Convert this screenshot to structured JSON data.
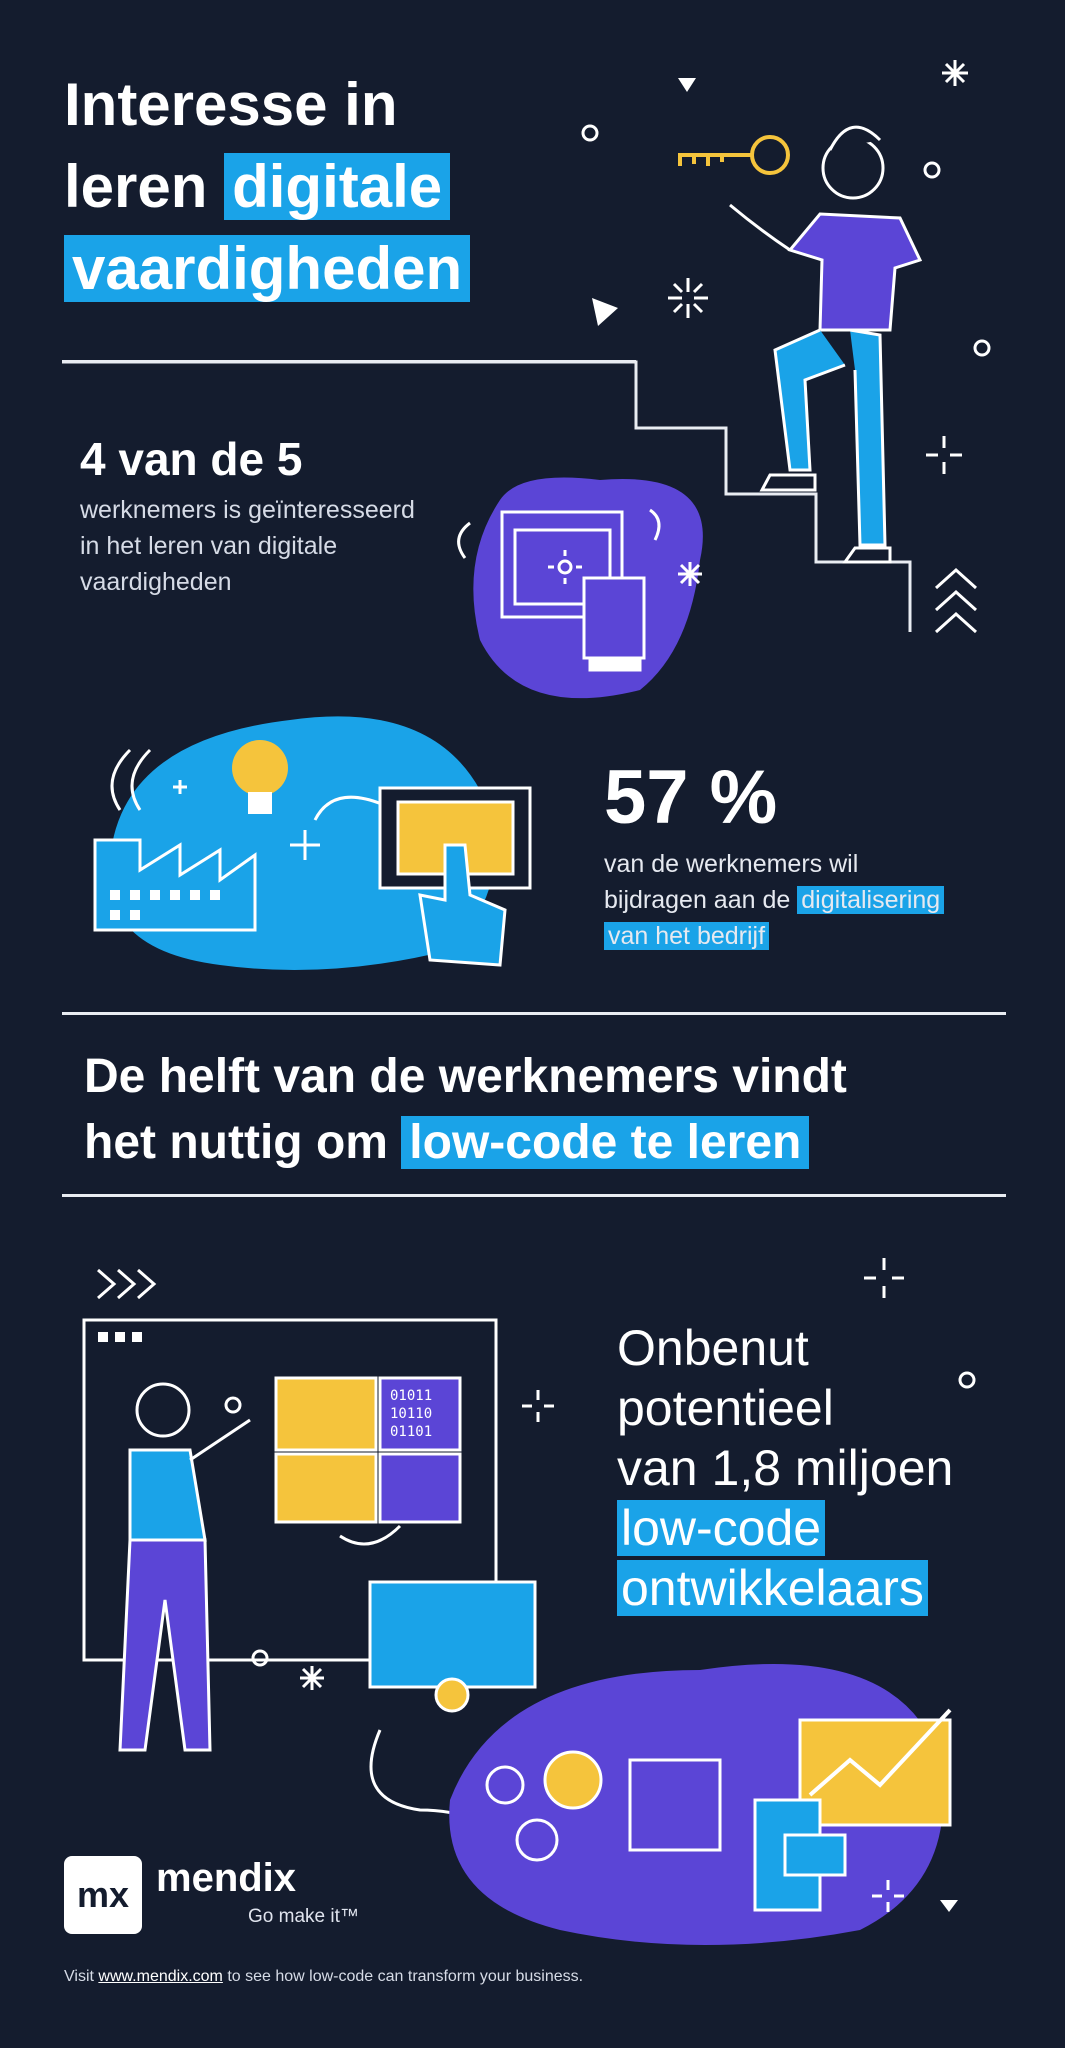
{
  "hero": {
    "title_line1": "Interesse in",
    "title_line2_plain": "leren",
    "title_line2_highlight": "digitale",
    "title_line3_highlight": "vaardigheden"
  },
  "stat1": {
    "headline": "4 van de 5",
    "line1": "werknemers is geïnteresseerd",
    "line2": "in het leren van digitale",
    "line3": "vaardigheden"
  },
  "stat2": {
    "headline": "57 %",
    "line1": "van de werknemers wil",
    "line2_plain": "bijdragen aan de",
    "line2_highlight": "digitalisering",
    "line3_highlight": "van het bedrijf"
  },
  "middle": {
    "line1": "De helft van de werknemers vindt",
    "line2_plain": "het nuttig om",
    "line2_highlight": "low-code te leren"
  },
  "potential": {
    "line1": "Onbenut",
    "line2": "potentieel",
    "line3": "van 1,8 miljoen",
    "line4_highlight": "low-code",
    "line5_highlight": "ontwikkelaars"
  },
  "illustration": {
    "binary_row1": "01011",
    "binary_row2": "10110",
    "binary_row3": "01101"
  },
  "brand": {
    "logo_mark": "mx",
    "name": "mendix",
    "tagline": "Go make it™"
  },
  "footer": {
    "prefix": "Visit",
    "link": "www.mendix.com",
    "suffix": "to see how low-code can transform your business."
  },
  "colors": {
    "background": "#141c2e",
    "blue": "#1aa3e8",
    "purple": "#5b45d6",
    "yellow": "#f5c43c"
  }
}
